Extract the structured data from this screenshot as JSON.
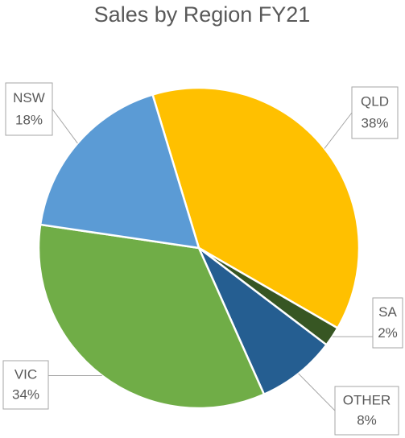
{
  "chart_data": {
    "type": "pie",
    "title": "Sales by Region FY21",
    "categories": [
      "QLD",
      "SA",
      "OTHER",
      "VIC",
      "NSW"
    ],
    "values": [
      38,
      2,
      8,
      34,
      18
    ],
    "value_labels": [
      "38%",
      "2%",
      "8%",
      "34%",
      "18%"
    ],
    "colors": [
      "#ffc000",
      "#375623",
      "#255e91",
      "#70ad47",
      "#5b9bd5"
    ]
  }
}
